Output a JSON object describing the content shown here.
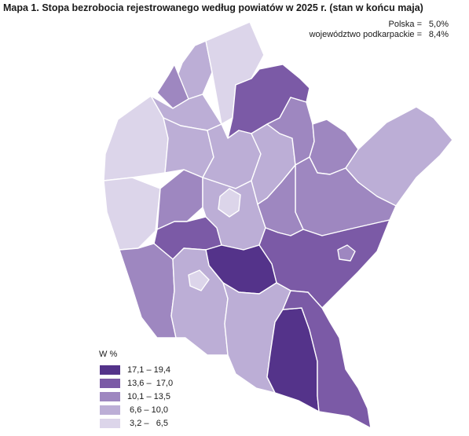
{
  "title": "Mapa 1. Stopa bezrobocia rejestrowanego według powiatów w 2025 r. (stan w końcu maja)",
  "summary": [
    {
      "label": "Polska =",
      "value": "5,0%"
    },
    {
      "label": "województwo podkarpackie =",
      "value": "8,4%"
    }
  ],
  "legend": {
    "title": "W %",
    "classes": [
      {
        "range": "17,1 – 19,4",
        "color": "#54338a"
      },
      {
        "range": "13,6 –  17,0",
        "color": "#7b5aa6"
      },
      {
        "range": "10,1 – 13,5",
        "color": "#9e87c0"
      },
      {
        "range": " 6,6 – 10,0",
        "color": "#bcaed6"
      },
      {
        "range": " 3,2 –   6,5",
        "color": "#dcd5ea"
      }
    ]
  }
}
